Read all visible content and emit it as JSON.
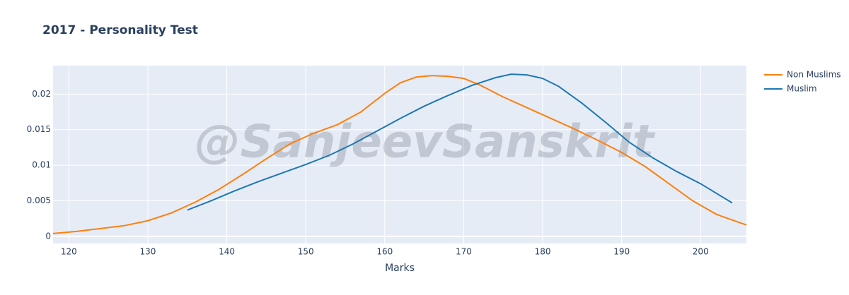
{
  "chart_data": {
    "type": "line",
    "title": "2017 - Personality Test",
    "x_label": "Marks",
    "watermark": "@SanjeevSanskrit",
    "xlim": [
      118,
      205.8
    ],
    "ylim": [
      -0.001,
      0.024
    ],
    "xticks": [
      120,
      130,
      140,
      150,
      160,
      170,
      180,
      190,
      200
    ],
    "yticks": [
      0,
      0.005,
      0.01,
      0.015,
      0.02
    ],
    "grid": true,
    "legend": "outside-top-right",
    "series": [
      {
        "name": "Non Muslims",
        "color": "#ff7f0e",
        "x": [
          118,
          121,
          124,
          127,
          130,
          133,
          136,
          139,
          142,
          145,
          148,
          151,
          154,
          157,
          160,
          162,
          164,
          166,
          168,
          170,
          172,
          175,
          178,
          181,
          184,
          187,
          190,
          193,
          196,
          199,
          202,
          205.8
        ],
        "values": [
          0.0004,
          0.0007,
          0.0011,
          0.0015,
          0.0022,
          0.0033,
          0.0048,
          0.0066,
          0.0087,
          0.0109,
          0.013,
          0.0145,
          0.0157,
          0.0175,
          0.0201,
          0.0216,
          0.0224,
          0.0226,
          0.0225,
          0.0222,
          0.0213,
          0.0196,
          0.0181,
          0.0166,
          0.0151,
          0.0135,
          0.0118,
          0.0098,
          0.0074,
          0.005,
          0.0031,
          0.0016
        ]
      },
      {
        "name": "Muslim",
        "color": "#1f77b4",
        "x": [
          135,
          138,
          141,
          144,
          147,
          150,
          153,
          156,
          159,
          162,
          165,
          168,
          171,
          174,
          176,
          178,
          180,
          182,
          185,
          188,
          191,
          194,
          197,
          200,
          204
        ],
        "values": [
          0.0037,
          0.005,
          0.0064,
          0.0077,
          0.0089,
          0.0101,
          0.0114,
          0.013,
          0.0148,
          0.0166,
          0.0183,
          0.0198,
          0.0212,
          0.0223,
          0.0228,
          0.0227,
          0.0222,
          0.0211,
          0.0187,
          0.016,
          0.0132,
          0.011,
          0.0091,
          0.0074,
          0.0047
        ]
      }
    ]
  }
}
